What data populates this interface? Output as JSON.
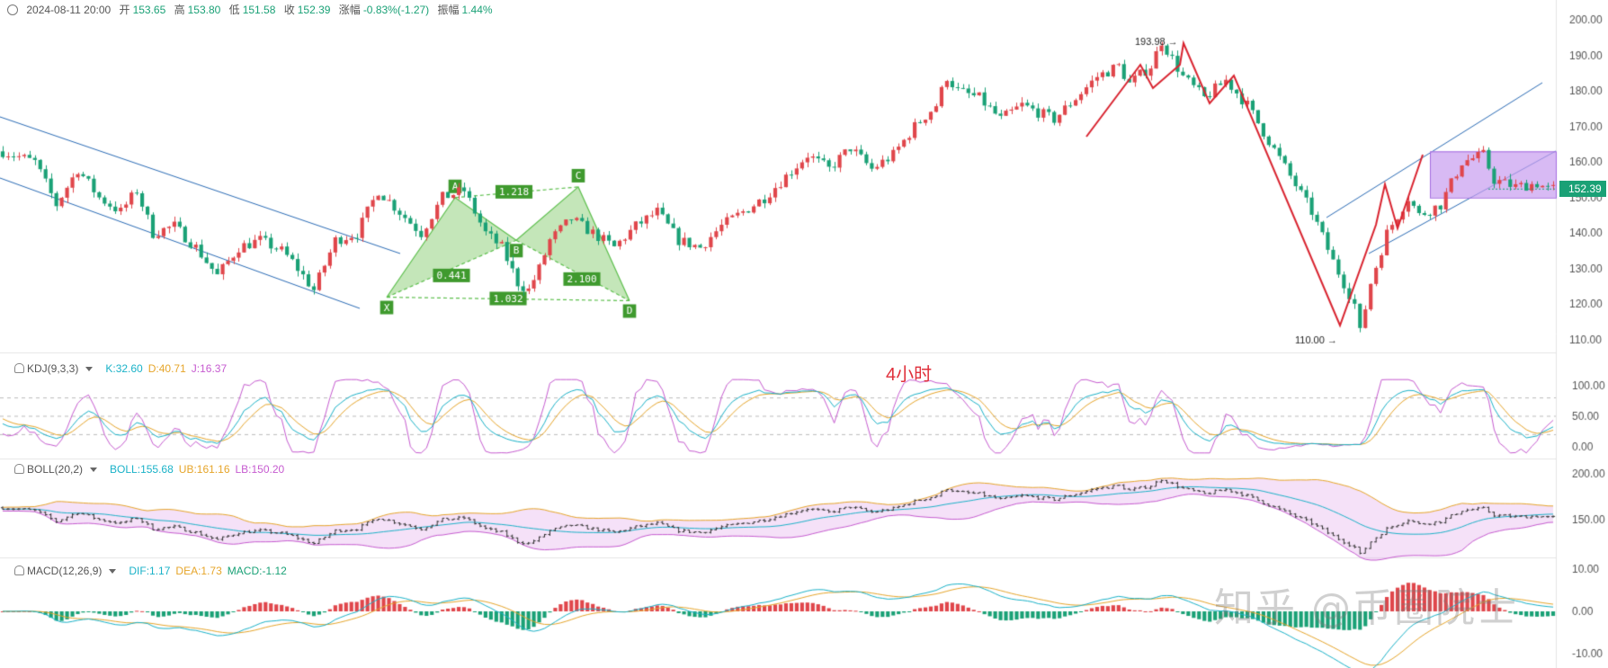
{
  "header": {
    "datetime": "2024-08-11 20:00",
    "open_label": "开",
    "open": "153.65",
    "high_label": "高",
    "high": "153.80",
    "low_label": "低",
    "low": "151.58",
    "close_label": "收",
    "close": "152.39",
    "change_label": "涨幅",
    "change": "-0.83%(-1.27)",
    "amplitude_label": "振幅",
    "amplitude": "1.44%"
  },
  "timeframe": "4小时",
  "watermark": "知乎 @币圈院士",
  "last_price": "152.39",
  "colors": {
    "up": "#e0464b",
    "down": "#1aa176",
    "k": "#1ab2c8",
    "d": "#e6a52a",
    "j": "#c65bd0",
    "pattern": "#5cbf4c",
    "box": "#c79df0",
    "channel": "#2a6bb5",
    "arrow": "#d9232f"
  },
  "kdj": {
    "label": "KDJ(9,3,3)",
    "k": "K:32.60",
    "d": "D:40.71",
    "j": "J:16.37"
  },
  "boll": {
    "label": "BOLL(20,2)",
    "mid": "BOLL:155.68",
    "ub": "UB:161.16",
    "lb": "LB:150.20"
  },
  "macd": {
    "label": "MACD(12,26,9)",
    "dif": "DIF:1.17",
    "dea": "DEA:1.73",
    "macd": "MACD:-1.12"
  },
  "chart_data": {
    "type": "candlestick",
    "main_axis": {
      "ticks": [
        "200.00",
        "190.00",
        "180.00",
        "170.00",
        "160.00",
        "150.00",
        "140.00",
        "130.00",
        "120.00",
        "110.00"
      ],
      "ylim": [
        106,
        202
      ]
    },
    "kdj_axis": {
      "ticks": [
        "100.00",
        "50.00",
        "0.00"
      ]
    },
    "boll_axis": {
      "ticks": [
        "200.00",
        "150.00"
      ]
    },
    "macd_axis": {
      "ticks": [
        "10.00",
        "0.00",
        "-10.00"
      ]
    },
    "price_path": [
      [
        0,
        163
      ],
      [
        6,
        160
      ],
      [
        10,
        148
      ],
      [
        14,
        158
      ],
      [
        18,
        150
      ],
      [
        22,
        146
      ],
      [
        25,
        152
      ],
      [
        28,
        140
      ],
      [
        32,
        142
      ],
      [
        36,
        136
      ],
      [
        40,
        128
      ],
      [
        44,
        136
      ],
      [
        48,
        138
      ],
      [
        52,
        135
      ],
      [
        54,
        132
      ],
      [
        58,
        124
      ],
      [
        62,
        138
      ],
      [
        66,
        140
      ],
      [
        70,
        152
      ],
      [
        74,
        146
      ],
      [
        78,
        140
      ],
      [
        82,
        150
      ],
      [
        86,
        152
      ],
      [
        90,
        140
      ],
      [
        93,
        136
      ],
      [
        96,
        126
      ],
      [
        98,
        124
      ],
      [
        100,
        130
      ],
      [
        102,
        138
      ],
      [
        106,
        144
      ],
      [
        110,
        140
      ],
      [
        114,
        136
      ],
      [
        118,
        142
      ],
      [
        122,
        146
      ],
      [
        126,
        138
      ],
      [
        130,
        136
      ],
      [
        134,
        142
      ],
      [
        138,
        146
      ],
      [
        142,
        150
      ],
      [
        146,
        156
      ],
      [
        150,
        162
      ],
      [
        154,
        158
      ],
      [
        158,
        164
      ],
      [
        162,
        158
      ],
      [
        166,
        162
      ],
      [
        170,
        170
      ],
      [
        174,
        176
      ],
      [
        176,
        184
      ],
      [
        178,
        180
      ],
      [
        182,
        178
      ],
      [
        186,
        172
      ],
      [
        190,
        176
      ],
      [
        193,
        174
      ],
      [
        196,
        172
      ],
      [
        200,
        178
      ],
      [
        204,
        184
      ],
      [
        208,
        187
      ],
      [
        210,
        182
      ],
      [
        214,
        187
      ],
      [
        216,
        194
      ],
      [
        220,
        184
      ],
      [
        224,
        178
      ],
      [
        228,
        183
      ],
      [
        232,
        176
      ],
      [
        236,
        166
      ],
      [
        240,
        156
      ],
      [
        244,
        146
      ],
      [
        248,
        132
      ],
      [
        252,
        120
      ],
      [
        253,
        112
      ],
      [
        255,
        126
      ],
      [
        258,
        140
      ],
      [
        262,
        150
      ],
      [
        264,
        145
      ],
      [
        268,
        148
      ],
      [
        272,
        160
      ],
      [
        276,
        162
      ],
      [
        278,
        155
      ],
      [
        282,
        153
      ],
      [
        286,
        154
      ],
      [
        288,
        152.4
      ]
    ],
    "swing_labels": {
      "high": "193.98",
      "low": "110.00"
    },
    "harmonic_pattern": {
      "points": [
        {
          "label": "X",
          "price": 122
        },
        {
          "label": "A",
          "price": 150
        },
        {
          "label": "B",
          "price": 138
        },
        {
          "label": "C",
          "price": 153
        },
        {
          "label": "D",
          "price": 121
        }
      ],
      "ratios": {
        "xb": "0.441",
        "ac": "1.218",
        "bd": "2.100",
        "xd": "1.032"
      }
    },
    "range_box": {
      "top": 163,
      "bottom": 150
    }
  }
}
